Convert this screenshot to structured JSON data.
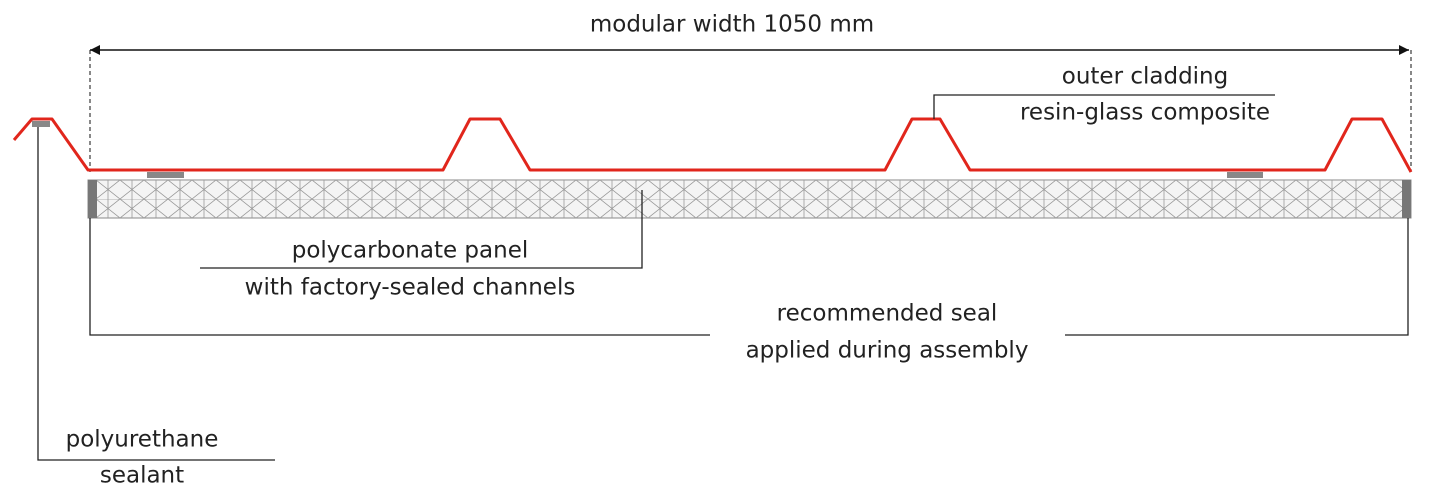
{
  "dimension": {
    "label": "modular width 1050 mm"
  },
  "labels": {
    "cladding": [
      "outer cladding",
      "resin-glass composite"
    ],
    "panel": [
      "polycarbonate panel",
      "with factory-sealed channels"
    ],
    "seal": [
      "recommended seal",
      "applied during assembly"
    ],
    "sealant": [
      "polyurethane",
      "sealant"
    ]
  }
}
